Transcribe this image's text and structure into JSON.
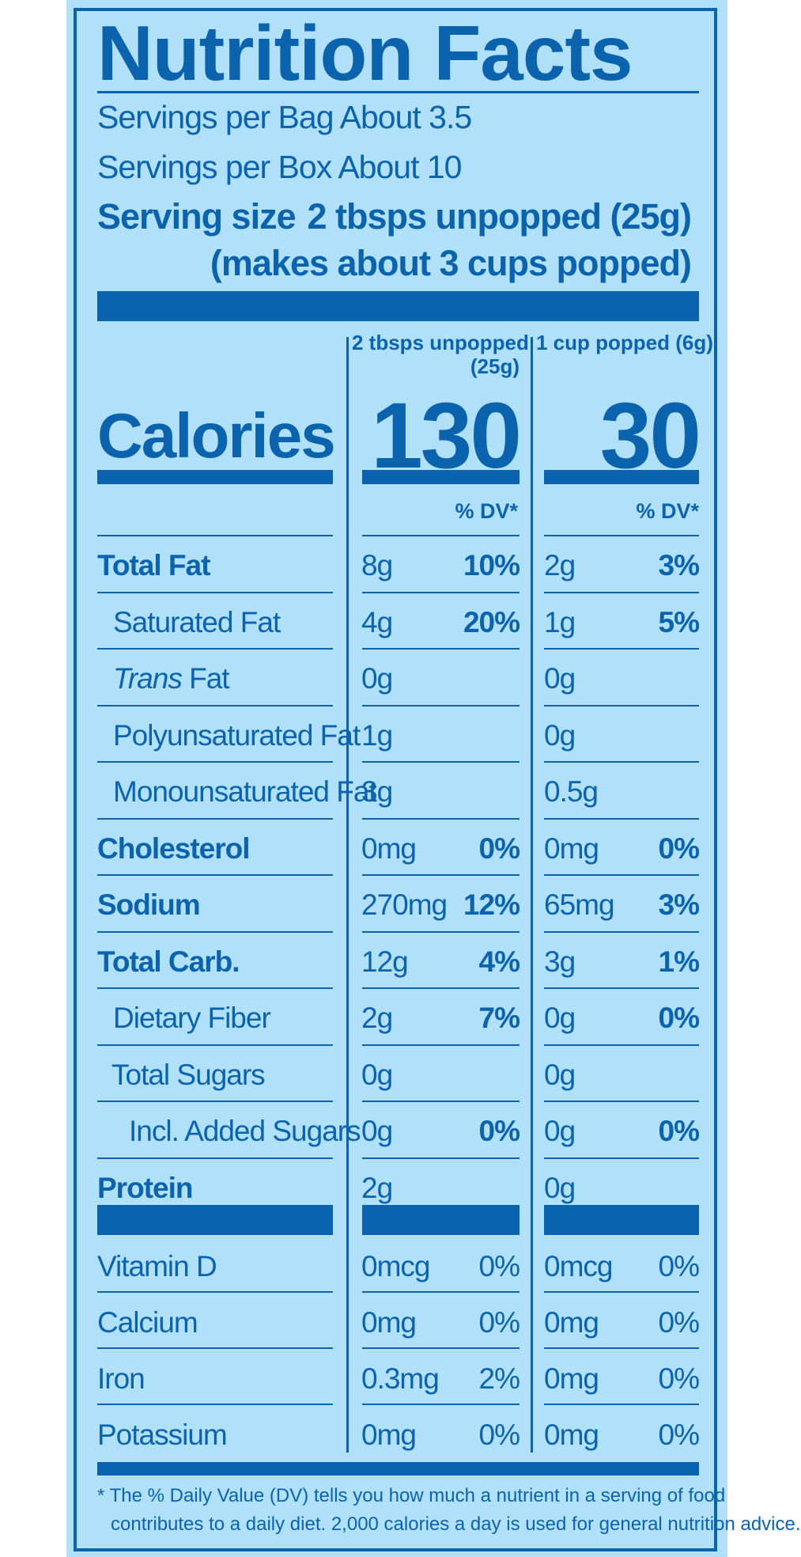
{
  "title": "Nutrition Facts",
  "servings_bag": "Servings per Bag About 3.5",
  "servings_box": "Servings per Box About 10",
  "serving_size_label": "Serving size",
  "serving_size_value": "2 tbsps unpopped (25g)",
  "serving_size_note": "(makes about 3 cups popped)",
  "col1_header_line1": "2 tbsps unpopped",
  "col1_header_line2": "(25g)",
  "col2_header": "1 cup popped (6g)",
  "calories_label": "Calories",
  "calories_col1": "130",
  "calories_col2": "30",
  "dv_header": "% DV*",
  "nutrients": [
    {
      "label": "Total Fat",
      "c1_amt": "8g",
      "c1_pct": "10%",
      "c2_amt": "2g",
      "c2_pct": "3%"
    },
    {
      "label": "Saturated Fat",
      "c1_amt": "4g",
      "c1_pct": "20%",
      "c2_amt": "1g",
      "c2_pct": "5%"
    },
    {
      "label_italic": "Trans",
      "label": " Fat",
      "c1_amt": "0g",
      "c1_pct": "",
      "c2_amt": "0g",
      "c2_pct": ""
    },
    {
      "label": "Polyunsaturated Fat",
      "c1_amt": "1g",
      "c1_pct": "",
      "c2_amt": "0g",
      "c2_pct": ""
    },
    {
      "label": "Monounsaturated Fat",
      "c1_amt": "3g",
      "c1_pct": "",
      "c2_amt": "0.5g",
      "c2_pct": ""
    },
    {
      "label": "Cholesterol",
      "c1_amt": "0mg",
      "c1_pct": "0%",
      "c2_amt": "0mg",
      "c2_pct": "0%"
    },
    {
      "label": "Sodium",
      "c1_amt": "270mg",
      "c1_pct": "12%",
      "c2_amt": "65mg",
      "c2_pct": "3%"
    },
    {
      "label": "Total Carb.",
      "c1_amt": "12g",
      "c1_pct": "4%",
      "c2_amt": "3g",
      "c2_pct": "1%"
    },
    {
      "label": "Dietary Fiber",
      "c1_amt": "2g",
      "c1_pct": "7%",
      "c2_amt": "0g",
      "c2_pct": "0%"
    },
    {
      "label": "Total Sugars",
      "c1_amt": "0g",
      "c1_pct": "",
      "c2_amt": "0g",
      "c2_pct": ""
    },
    {
      "label": "Incl. Added Sugars",
      "c1_amt": "0g",
      "c1_pct": "0%",
      "c2_amt": "0g",
      "c2_pct": "0%"
    },
    {
      "label": "Protein",
      "c1_amt": "2g",
      "c1_pct": "",
      "c2_amt": "0g",
      "c2_pct": ""
    }
  ],
  "vitamins": [
    {
      "label": "Vitamin D",
      "c1_amt": "0mcg",
      "c1_pct": "0%",
      "c2_amt": "0mcg",
      "c2_pct": "0%"
    },
    {
      "label": "Calcium",
      "c1_amt": "0mg",
      "c1_pct": "0%",
      "c2_amt": "0mg",
      "c2_pct": "0%"
    },
    {
      "label": "Iron",
      "c1_amt": "0.3mg",
      "c1_pct": "2%",
      "c2_amt": "0mg",
      "c2_pct": "0%"
    },
    {
      "label": "Potassium",
      "c1_amt": "0mg",
      "c1_pct": "0%",
      "c2_amt": "0mg",
      "c2_pct": "0%"
    }
  ],
  "footnote_line1": "* The % Daily Value (DV) tells you how much a nutrient in a serving of food",
  "footnote_line2": "contributes to a daily diet. 2,000 calories a day is used for general nutrition advice.",
  "colors": {
    "ink": "#0b63ad",
    "background": "#b1e0fb"
  }
}
